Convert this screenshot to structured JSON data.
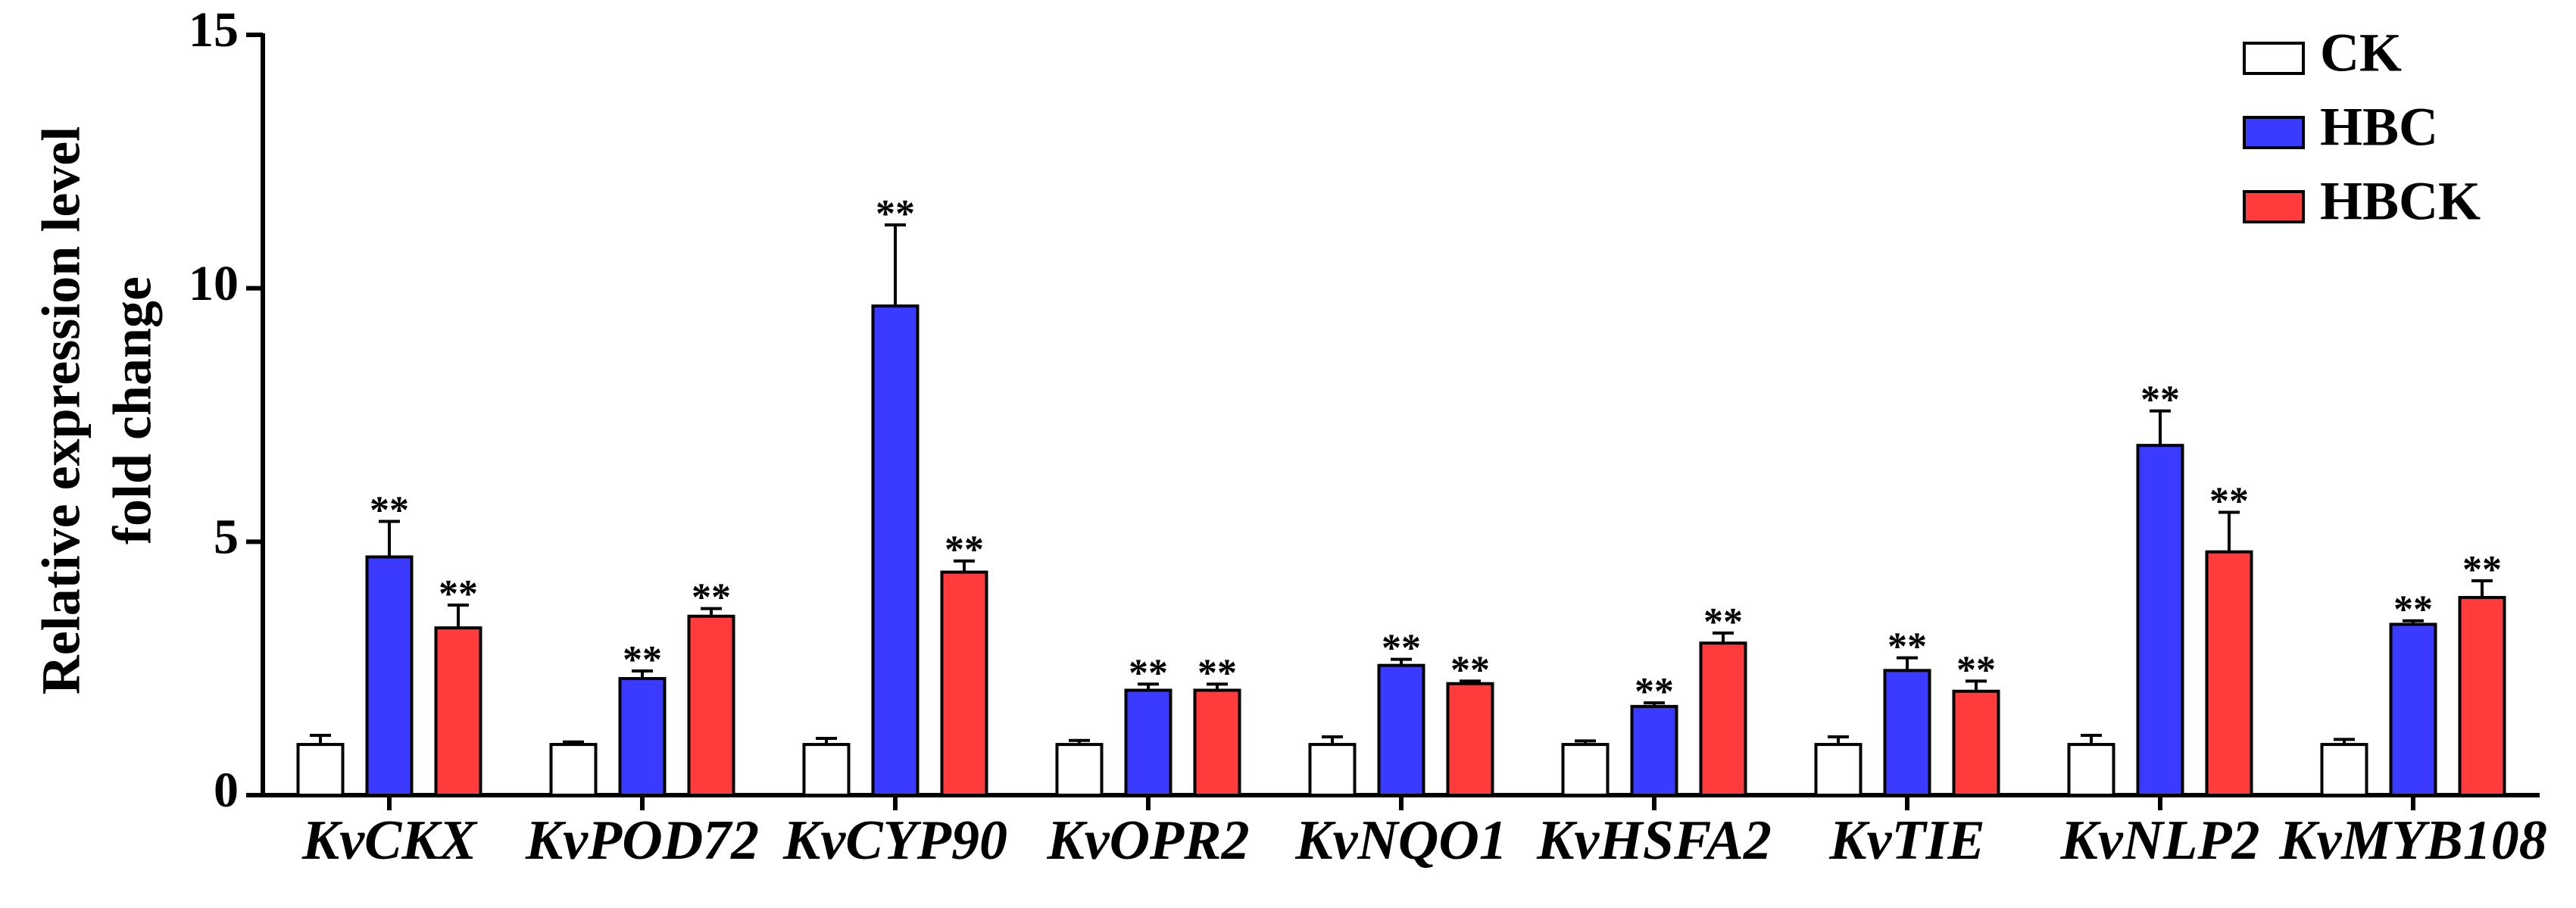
{
  "chart_data": {
    "type": "bar",
    "ylabel": [
      "Relative expression level",
      "fold change"
    ],
    "categories": [
      "KvCKX",
      "KvPOD72",
      "KvCYP90",
      "KvOPR2",
      "KvNQO1",
      "KvHSFA2",
      "KvTIE",
      "KvNLP2",
      "KvMYB108"
    ],
    "series": [
      {
        "name": "CK",
        "color": "#ffffff",
        "values": [
          1.0,
          1.0,
          1.0,
          1.0,
          1.0,
          1.0,
          1.0,
          1.0,
          1.0
        ],
        "errors": [
          0.18,
          0.05,
          0.12,
          0.08,
          0.15,
          0.07,
          0.15,
          0.18,
          0.1
        ]
      },
      {
        "name": "HBC",
        "color": "#3b3bff",
        "values": [
          4.7,
          2.3,
          9.65,
          2.07,
          2.56,
          1.75,
          2.46,
          6.9,
          3.37
        ],
        "errors": [
          0.7,
          0.15,
          1.6,
          0.12,
          0.12,
          0.07,
          0.25,
          0.68,
          0.07
        ],
        "annotations": [
          "**",
          "**",
          "**",
          "**",
          "**",
          "**",
          "**",
          "**",
          "**"
        ]
      },
      {
        "name": "HBCK",
        "color": "#ff3b3b",
        "values": [
          3.3,
          3.53,
          4.4,
          2.07,
          2.2,
          3.0,
          2.05,
          4.8,
          3.9
        ],
        "errors": [
          0.45,
          0.15,
          0.22,
          0.12,
          0.05,
          0.2,
          0.2,
          0.78,
          0.33
        ],
        "annotations": [
          "**",
          "**",
          "**",
          "**",
          "**",
          "**",
          "**",
          "**",
          "**"
        ]
      }
    ],
    "ylim": [
      0,
      15
    ],
    "yticks": [
      0,
      5,
      10,
      15
    ],
    "legend": "top-right"
  }
}
